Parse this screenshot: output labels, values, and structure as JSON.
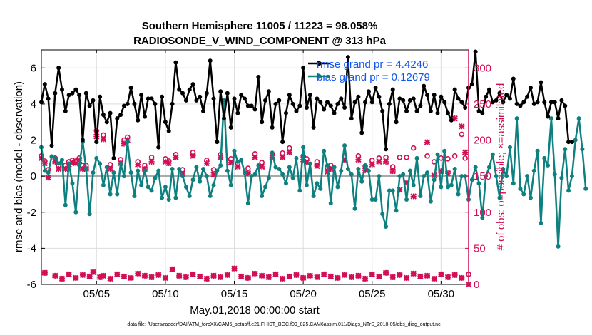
{
  "colors": {
    "rmse": "#000000",
    "bias": "#0e8080",
    "obs": "#d20f54",
    "legend_text": "#1155ee",
    "zero_line": "#aaaaaa",
    "grid": "#dddddd"
  },
  "chart_data": {
    "type": "line",
    "title_line1": "Southern Hemisphere 11005 / 11223 = 98.058%",
    "title_line2": "RADIOSONDE_V_WIND_COMPONENT @ 313 hPa",
    "xlabel": "May.01,2018 00:00:00 start",
    "ylabel_left": "rmse and bias (model - observation)",
    "ylabel_right": "# of obs: o=possible; ×=assimilated",
    "footer": "data file: /Users/raeder/DAI/ATM_forcXX/CAM6_setup/f.e21.FHIST_BGC.f09_025.CAM6assim.011/Diags_NTrS_2018-05/obs_diag_output.nc",
    "x_range": [
      1,
      32
    ],
    "ylim_left": [
      -6,
      7
    ],
    "ylim_right": [
      0,
      325
    ],
    "x_ticks": [
      {
        "day": 5,
        "label": "05/05"
      },
      {
        "day": 10,
        "label": "05/10"
      },
      {
        "day": 15,
        "label": "05/15"
      },
      {
        "day": 20,
        "label": "05/20"
      },
      {
        "day": 25,
        "label": "05/25"
      },
      {
        "day": 30,
        "label": "05/30"
      }
    ],
    "y_left_ticks": [
      {
        "value": -6,
        "label": "-6"
      },
      {
        "value": -4,
        "label": "-4"
      },
      {
        "value": -2,
        "label": "-2"
      },
      {
        "value": 0,
        "label": "0"
      },
      {
        "value": 2,
        "label": "2"
      },
      {
        "value": 4,
        "label": "4"
      },
      {
        "value": 6,
        "label": "6"
      }
    ],
    "y_right_ticks": [
      {
        "value": 0,
        "label": "0"
      },
      {
        "value": 50,
        "label": "50"
      },
      {
        "value": 100,
        "label": "100"
      },
      {
        "value": 150,
        "label": "150"
      },
      {
        "value": 200,
        "label": "200"
      },
      {
        "value": 250,
        "label": "250"
      },
      {
        "value": 300,
        "label": "300"
      }
    ],
    "legend": [
      {
        "label": "rmse grand pr = 4.4246",
        "series": "rmse"
      },
      {
        "label": "bias grand pr = 0.12679",
        "series": "bias"
      }
    ],
    "x_start": 1.0,
    "x_step": 0.25,
    "series": [
      {
        "name": "rmse",
        "axis": "left",
        "values": [
          4.1,
          5.1,
          4.3,
          1.7,
          4.6,
          6.0,
          4.8,
          3.6,
          4.5,
          4.6,
          4.8,
          4.5,
          2.0,
          4.6,
          3.9,
          4.2,
          1.9,
          4.4,
          3.4,
          3.0,
          3.5,
          1.0,
          3.2,
          3.4,
          3.9,
          4.0,
          4.9,
          4.0,
          3.1,
          4.5,
          3.3,
          4.3,
          4.3,
          4.0,
          1.6,
          4.4,
          3.0,
          2.5,
          4.0,
          6.3,
          4.8,
          4.6,
          4.2,
          4.8,
          5.1,
          4.2,
          4.4,
          3.6,
          4.6,
          6.4,
          4.3,
          1.9,
          4.7,
          3.2,
          4.6,
          2.7,
          4.3,
          3.5,
          4.5,
          4.3,
          3.9,
          3.9,
          3.7,
          5.5,
          3.0,
          4.2,
          4.7,
          2.7,
          4.0,
          4.2,
          1.9,
          3.5,
          4.5,
          4.0,
          3.6,
          3.9,
          6.0,
          3.8,
          4.5,
          2.7,
          4.3,
          4.1,
          3.7,
          4.1,
          3.9,
          3.5,
          4.0,
          4.3,
          3.8,
          6.6,
          3.2,
          4.1,
          4.4,
          2.4,
          4.1,
          4.7,
          4.1,
          4.9,
          4.4,
          3.6,
          1.5,
          4.0,
          4.8,
          3.0,
          4.3,
          4.2,
          3.6,
          4.2,
          4.3,
          3.6,
          3.9,
          5.0,
          4.5,
          3.6,
          4.5,
          3.5,
          4.4,
          4.1,
          3.5,
          3.1,
          4.8,
          4.3,
          4.1,
          3.8,
          4.9,
          5.1,
          6.9,
          3.6,
          3.5,
          4.4,
          4.8,
          4.1,
          4.2,
          4.6,
          4.1,
          4.5,
          4.3,
          5.4,
          4.0,
          3.9,
          4.1,
          4.4,
          4.9,
          4.0,
          4.1,
          5.2,
          4.1,
          3.3,
          4.1,
          4.1,
          3.2,
          4.2,
          3.9,
          1.9,
          1.9
        ]
      },
      {
        "name": "bias",
        "axis": "left",
        "values": [
          1.6,
          0.3,
          0.2,
          1.1,
          1.0,
          0.7,
          0.9,
          -1.6,
          0.7,
          -0.4,
          -2.0,
          0.6,
          1.9,
          0.4,
          -2.1,
          0.2,
          1.0,
          0.7,
          -0.5,
          0.5,
          -1.0,
          0.2,
          -1.0,
          0.7,
          0.0,
          1.9,
          0.2,
          -1.1,
          0.3,
          -0.5,
          0.3,
          -0.6,
          -0.8,
          -0.1,
          0.3,
          -1.2,
          -0.6,
          -1.3,
          0.4,
          -1.2,
          0.4,
          0.0,
          -0.6,
          -1.1,
          -0.2,
          0.5,
          -0.3,
          0.4,
          0.0,
          -1.1,
          -0.5,
          0.3,
          0.6,
          4.2,
          0.3,
          -0.5,
          1.4,
          0.8,
          0.9,
          0.2,
          -1.5,
          0.0,
          0.1,
          0.6,
          -1.1,
          -0.6,
          -0.1,
          1.3,
          0.5,
          0.4,
          0.1,
          -0.4,
          0.5,
          -0.1,
          1.0,
          -0.8,
          1.6,
          -0.5,
          0.7,
          -1.1,
          -0.4,
          -0.7,
          1.4,
          0.6,
          -1.5,
          0.5,
          -0.6,
          0.3,
          1.7,
          0.4,
          0.1,
          -1.8,
          0.4,
          -0.3,
          0.6,
          0.3,
          -1.3,
          -1.3,
          0.0,
          -2.1,
          -2.8,
          -0.8,
          -0.8,
          -1.9,
          0.0,
          0.1,
          -1.3,
          0.3,
          -0.5,
          1.0,
          -1.1,
          0.0,
          0.2,
          -1.4,
          -0.2,
          1.2,
          -0.6,
          1.4,
          -0.6,
          -0.5,
          0.4,
          -1.0,
          0.0,
          0.0,
          -1.3,
          -0.2,
          0.5,
          -0.4,
          -2.3,
          0.0,
          0.5,
          1.2,
          0.0,
          -1.2,
          0.4,
          0.0,
          1.6,
          -0.4,
          3.2,
          -0.7,
          -1.0,
          0.0,
          -1.2,
          0.3,
          1.4,
          -2.6,
          1.0,
          0.6,
          3.2,
          0.1,
          -3.9,
          -0.1,
          1.5,
          -0.8,
          0.0,
          2.0,
          3.2,
          1.5,
          -0.7
        ]
      },
      {
        "name": "obs_possible",
        "axis": "right",
        "marker": "o",
        "x": [
          1.0,
          1.25,
          1.5,
          2.0,
          2.25,
          2.75,
          3.0,
          3.25,
          3.5,
          3.75,
          4.0,
          4.25,
          5.0,
          5.5,
          6.0,
          6.75,
          7.0,
          7.25,
          8.0,
          8.5,
          9.0,
          10.0,
          10.25,
          10.75,
          11.25,
          12.0,
          13.0,
          13.5,
          14.0,
          14.75,
          15.25,
          16.0,
          16.5,
          17.0,
          17.75,
          18.5,
          19.0,
          20.0,
          20.25,
          21.0,
          21.75,
          22.0,
          23.0,
          24.0,
          24.5,
          25.0,
          25.5,
          26.0,
          26.5,
          27.0,
          27.5,
          28.0,
          29.0,
          29.5,
          30.0,
          30.5,
          31.0,
          31.5,
          31.75
        ],
        "values": [
          178,
          171,
          159,
          175,
          165,
          165,
          170,
          172,
          171,
          175,
          165,
          165,
          213,
          207,
          166,
          173,
          200,
          204,
          170,
          165,
          176,
          174,
          171,
          180,
          159,
          183,
          172,
          159,
          180,
          174,
          168,
          161,
          181,
          169,
          181,
          182,
          189,
          178,
          174,
          170,
          162,
          165,
          178,
          178,
          164,
          172,
          175,
          176,
          163,
          176,
          176,
          189,
          178,
          170,
          175,
          174,
          178,
          208,
          175
        ]
      },
      {
        "name": "obs_assimilated",
        "axis": "right",
        "marker": "x",
        "x": [
          1.0,
          1.25,
          1.5,
          2.0,
          2.25,
          2.75,
          3.0,
          3.25,
          3.5,
          3.75,
          4.0,
          4.25,
          5.0,
          5.5,
          6.0,
          6.75,
          7.0,
          7.25,
          8.0,
          8.5,
          9.0,
          10.0,
          10.25,
          10.75,
          11.25,
          12.0,
          13.0,
          13.5,
          14.0,
          14.75,
          15.25,
          16.0,
          16.5,
          17.0,
          17.75,
          18.5,
          19.0,
          20.0,
          20.25,
          21.0,
          21.75,
          22.0,
          23.0,
          24.0,
          24.5,
          25.0,
          25.5,
          26.0,
          26.5,
          27.0,
          27.5,
          28.0,
          29.0,
          29.5,
          30.0,
          30.5,
          31.0,
          31.5,
          31.75
        ],
        "values": [
          175,
          168,
          148,
          170,
          160,
          160,
          166,
          169,
          168,
          172,
          160,
          160,
          205,
          201,
          160,
          168,
          195,
          200,
          166,
          160,
          170,
          170,
          168,
          176,
          153,
          178,
          168,
          152,
          176,
          169,
          163,
          154,
          176,
          163,
          176,
          176,
          183,
          173,
          169,
          164,
          156,
          160,
          172,
          173,
          158,
          166,
          170,
          170,
          157,
          131,
          141,
          122,
          197,
          151,
          157,
          154,
          230,
          219,
          183
        ]
      },
      {
        "name": "obs_low_possible",
        "axis": "right",
        "marker": "o",
        "x": [
          1.25,
          2.0,
          2.5,
          3.0,
          3.5,
          4.0,
          4.5,
          4.75,
          5.25,
          5.5,
          6.0,
          6.5,
          7.0,
          7.5,
          8.0,
          8.5,
          9.0,
          9.5,
          10.0,
          10.5,
          11.0,
          11.5,
          12.0,
          12.5,
          13.0,
          13.5,
          14.0,
          14.5,
          15.0,
          15.5,
          16.0,
          16.5,
          17.0,
          17.5,
          18.0,
          18.5,
          19.0,
          19.5,
          20.0,
          20.5,
          21.0,
          21.5,
          22.0,
          22.5,
          23.0,
          23.5,
          24.0,
          24.5,
          25.0,
          25.5,
          26.0,
          26.5,
          27.0,
          27.5,
          28.0,
          28.5,
          29.0,
          29.5,
          30.0,
          30.5,
          31.0,
          31.5,
          32.0
        ],
        "values": [
          16,
          12,
          8,
          14,
          9,
          13,
          11,
          17,
          10,
          12,
          8,
          14,
          11,
          9,
          15,
          12,
          10,
          13,
          9,
          21,
          12,
          10,
          14,
          11,
          8,
          12,
          10,
          13,
          22,
          11,
          9,
          15,
          12,
          10,
          14,
          8,
          11,
          13,
          9,
          12,
          10,
          14,
          11,
          9,
          13,
          10,
          12,
          8,
          14,
          11,
          16,
          10,
          13,
          9,
          15,
          11,
          12,
          8,
          14,
          10,
          13,
          9,
          14
        ]
      },
      {
        "name": "obs_low_assimilated",
        "axis": "right",
        "marker": "x",
        "x": [
          1.25,
          2.0,
          2.5,
          3.0,
          3.5,
          4.0,
          4.5,
          4.75,
          5.25,
          5.5,
          6.0,
          6.5,
          7.0,
          7.5,
          8.0,
          8.5,
          9.0,
          9.5,
          10.0,
          10.5,
          11.0,
          11.5,
          12.0,
          12.5,
          13.0,
          13.5,
          14.0,
          14.5,
          15.0,
          15.5,
          16.0,
          16.5,
          17.0,
          17.5,
          18.0,
          18.5,
          19.0,
          19.5,
          20.0,
          20.5,
          21.0,
          21.5,
          22.0,
          22.5,
          23.0,
          23.5,
          24.0,
          24.5,
          25.0,
          25.5,
          26.0,
          26.5,
          27.0,
          27.5,
          28.0,
          28.5,
          29.0,
          29.5,
          30.0,
          30.5,
          31.0,
          31.5,
          32.0
        ],
        "values": [
          16,
          12,
          8,
          14,
          9,
          13,
          11,
          17,
          10,
          12,
          8,
          14,
          11,
          9,
          15,
          12,
          10,
          13,
          9,
          21,
          12,
          10,
          14,
          11,
          8,
          12,
          10,
          13,
          22,
          11,
          9,
          15,
          12,
          10,
          14,
          8,
          11,
          13,
          9,
          12,
          10,
          14,
          11,
          9,
          13,
          10,
          12,
          8,
          14,
          11,
          16,
          10,
          13,
          9,
          15,
          11,
          12,
          8,
          14,
          10,
          13,
          9,
          0
        ]
      }
    ]
  }
}
